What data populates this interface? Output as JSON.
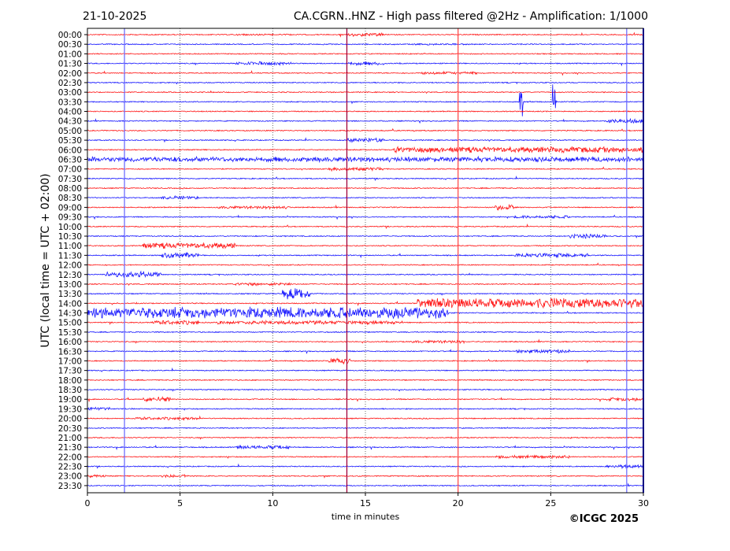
{
  "chart_data": {
    "type": "line",
    "date": "21-10-2025",
    "title": "CA.CGRN..HNZ - High pass filtered @2Hz - Amplification: 1/1000",
    "xlabel": "time in minutes",
    "ylabel": "UTC (local time = UTC + 02:00)",
    "xlim": [
      0,
      30
    ],
    "x_ticks": [
      "0",
      "5",
      "10",
      "15",
      "20",
      "25",
      "30"
    ],
    "rows": [
      "00:00",
      "00:30",
      "01:00",
      "01:30",
      "02:00",
      "02:30",
      "03:00",
      "03:30",
      "04:00",
      "04:30",
      "05:00",
      "05:30",
      "06:00",
      "06:30",
      "07:00",
      "07:30",
      "08:00",
      "08:30",
      "09:00",
      "09:30",
      "10:00",
      "10:30",
      "11:00",
      "11:30",
      "12:00",
      "12:30",
      "13:00",
      "13:30",
      "14:00",
      "14:30",
      "15:00",
      "15:30",
      "16:00",
      "16:30",
      "17:00",
      "17:30",
      "18:00",
      "18:30",
      "19:00",
      "19:30",
      "20:00",
      "20:30",
      "21:00",
      "21:30",
      "22:00",
      "22:30",
      "23:00",
      "23:30"
    ],
    "row_colors": [
      "#ff0000",
      "#0000ff"
    ],
    "markers": [
      {
        "minute": 2.0,
        "color": "#6f6fff"
      },
      {
        "minute": 14.0,
        "color": "#a0003a"
      },
      {
        "minute": 20.0,
        "color": "#ff5050"
      },
      {
        "minute": 29.1,
        "color": "#6f6fff"
      },
      {
        "minute": 30.0,
        "color": "#0000ff"
      }
    ],
    "events": [
      {
        "row": "00:00",
        "start": 8,
        "end": 11,
        "amp": 1.2
      },
      {
        "row": "00:00",
        "start": 14,
        "end": 16,
        "amp": 2.5
      },
      {
        "row": "00:30",
        "start": 17.5,
        "end": 21,
        "amp": 1.2
      },
      {
        "row": "01:30",
        "start": 8,
        "end": 11,
        "amp": 2.5
      },
      {
        "row": "01:30",
        "start": 14,
        "end": 16,
        "amp": 2.5
      },
      {
        "row": "02:00",
        "start": 18,
        "end": 21,
        "amp": 2
      },
      {
        "row": "03:30",
        "start": 23.3,
        "end": 23.5,
        "amp": 30
      },
      {
        "row": "03:30",
        "start": 25.1,
        "end": 25.3,
        "amp": 25
      },
      {
        "row": "04:30",
        "start": 28,
        "end": 30,
        "amp": 3
      },
      {
        "row": "05:30",
        "start": 14,
        "end": 16,
        "amp": 3
      },
      {
        "row": "06:00",
        "start": 16.5,
        "end": 30,
        "amp": 4
      },
      {
        "row": "06:30",
        "start": 0,
        "end": 30,
        "amp": 3.5
      },
      {
        "row": "07:00",
        "start": 13,
        "end": 16,
        "amp": 2.5
      },
      {
        "row": "08:30",
        "start": 4,
        "end": 6,
        "amp": 2.5
      },
      {
        "row": "09:00",
        "start": 7,
        "end": 11,
        "amp": 2
      },
      {
        "row": "09:00",
        "start": 22,
        "end": 23,
        "amp": 4
      },
      {
        "row": "09:30",
        "start": 23,
        "end": 26,
        "amp": 2
      },
      {
        "row": "10:30",
        "start": 26,
        "end": 28,
        "amp": 3
      },
      {
        "row": "11:00",
        "start": 3,
        "end": 8,
        "amp": 4
      },
      {
        "row": "11:30",
        "start": 4,
        "end": 6,
        "amp": 4
      },
      {
        "row": "11:30",
        "start": 23,
        "end": 27,
        "amp": 3
      },
      {
        "row": "12:30",
        "start": 1,
        "end": 4,
        "amp": 4
      },
      {
        "row": "13:00",
        "start": 8,
        "end": 11,
        "amp": 2
      },
      {
        "row": "13:30",
        "start": 10.5,
        "end": 12,
        "amp": 8
      },
      {
        "row": "14:00",
        "start": 17.8,
        "end": 30,
        "amp": 7
      },
      {
        "row": "14:30",
        "start": 0,
        "end": 19.5,
        "amp": 8
      },
      {
        "row": "15:00",
        "start": 3.5,
        "end": 6,
        "amp": 3
      },
      {
        "row": "15:00",
        "start": 7,
        "end": 17,
        "amp": 2.5
      },
      {
        "row": "16:00",
        "start": 17.5,
        "end": 20.5,
        "amp": 2
      },
      {
        "row": "16:30",
        "start": 23,
        "end": 26,
        "amp": 2.5
      },
      {
        "row": "17:00",
        "start": 13,
        "end": 14.2,
        "amp": 4
      },
      {
        "row": "19:00",
        "start": 3,
        "end": 4.5,
        "amp": 3.5
      },
      {
        "row": "19:00",
        "start": 28,
        "end": 30,
        "amp": 2.5
      },
      {
        "row": "19:30",
        "start": 0,
        "end": 1.2,
        "amp": 2.5
      },
      {
        "row": "20:00",
        "start": 2.5,
        "end": 6,
        "amp": 2
      },
      {
        "row": "21:30",
        "start": 8,
        "end": 11,
        "amp": 2.5
      },
      {
        "row": "22:00",
        "start": 22,
        "end": 26,
        "amp": 2
      },
      {
        "row": "22:30",
        "start": 28,
        "end": 30,
        "amp": 2.5
      },
      {
        "row": "23:00",
        "start": 0,
        "end": 1,
        "amp": 2
      },
      {
        "row": "23:00",
        "start": 4,
        "end": 5.5,
        "amp": 2
      }
    ]
  },
  "copyright": "©ICGC 2025"
}
